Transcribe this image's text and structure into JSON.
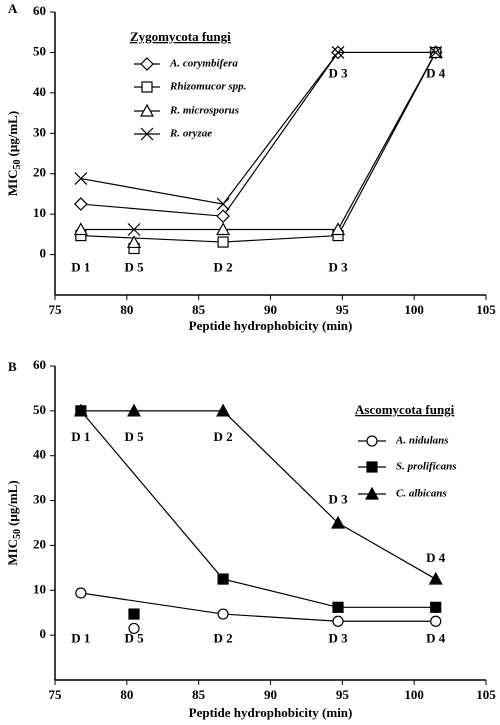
{
  "chart_data": [
    {
      "type": "line",
      "panel_label": "A",
      "title": "Zygomycota fungi",
      "xlabel": "Peptide hydrophobicity (min)",
      "ylabel": {
        "text": "MIC",
        "sub": "50",
        "unit": "(μg/mL)"
      },
      "xlim": [
        75,
        105
      ],
      "xticks": [
        75,
        80,
        85,
        90,
        95,
        100,
        105
      ],
      "ylim": [
        -10,
        60
      ],
      "yticks": [
        0,
        10,
        20,
        30,
        40,
        50,
        60
      ],
      "grid": false,
      "series": [
        {
          "name": "A. corymbifera",
          "color": "#000000",
          "marker": "diamond",
          "filled": false,
          "x": [
            76.8,
            86.7,
            94.7,
            101.5
          ],
          "values": [
            12.5,
            9.5,
            50,
            50
          ]
        },
        {
          "name": "Rhizomucor spp.",
          "color": "#000000",
          "marker": "square",
          "filled": false,
          "x": [
            76.8,
            86.7,
            94.7,
            101.5,
            null,
            80.5
          ],
          "values": [
            4.7,
            3.1,
            4.7,
            50,
            null,
            1.5
          ]
        },
        {
          "name": "R. microsporus",
          "color": "#000000",
          "marker": "triangle",
          "filled": false,
          "x": [
            76.8,
            86.7,
            94.7,
            101.5,
            null,
            80.5
          ],
          "values": [
            6.2,
            6.2,
            6.2,
            50,
            null,
            3
          ]
        },
        {
          "name": "R. oryzae",
          "color": "#000000",
          "marker": "x",
          "filled": false,
          "x": [
            76.8,
            86.7,
            94.7,
            101.5,
            null,
            80.5
          ],
          "values": [
            18.8,
            12.5,
            50,
            50,
            null,
            6.2
          ]
        }
      ],
      "annotations": [
        "D 1",
        "D 5",
        "D 2",
        "D 3",
        "D 3",
        "D 4"
      ]
    },
    {
      "type": "line",
      "panel_label": "B",
      "title": "Ascomycota fungi",
      "xlabel": "Peptide hydrophobicity (min)",
      "ylabel": {
        "text": "MIC",
        "sub": "50",
        "unit": "(μg/mL)"
      },
      "xlim": [
        75,
        105
      ],
      "xticks": [
        75,
        80,
        85,
        90,
        95,
        100,
        105
      ],
      "ylim": [
        -10,
        60
      ],
      "yticks": [
        0,
        10,
        20,
        30,
        40,
        50,
        60
      ],
      "grid": false,
      "series": [
        {
          "name": "A. nidulans",
          "color": "#000000",
          "marker": "circle",
          "filled": false,
          "x": [
            76.8,
            86.7,
            94.7,
            101.5,
            null,
            80.5
          ],
          "values": [
            9.4,
            4.7,
            3.1,
            3.1,
            null,
            1.5
          ]
        },
        {
          "name": "S. prolificans",
          "color": "#000000",
          "marker": "square",
          "filled": true,
          "x": [
            76.8,
            86.7,
            94.7,
            101.5,
            null,
            80.5
          ],
          "values": [
            50,
            12.5,
            6.2,
            6.2,
            null,
            4.7
          ]
        },
        {
          "name": "C. albicans",
          "color": "#000000",
          "marker": "triangle",
          "filled": true,
          "x": [
            76.8,
            80.5,
            86.7,
            94.7,
            101.5
          ],
          "values": [
            50,
            50,
            50,
            25,
            12.5
          ]
        }
      ],
      "annotations": [
        "D 1",
        "D 5",
        "D 2",
        "D 3",
        "D 4",
        "D 1",
        "D 5",
        "D 2",
        "D 3",
        "D 4"
      ]
    }
  ]
}
